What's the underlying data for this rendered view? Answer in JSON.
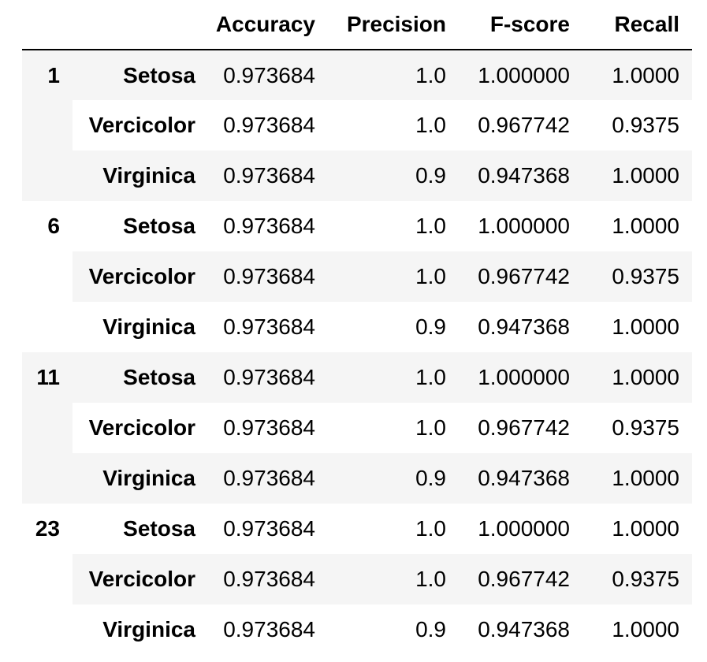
{
  "table": {
    "columns": [
      "Accuracy",
      "Precision",
      "F-score",
      "Recall"
    ],
    "groups": [
      {
        "label": "1",
        "rows": [
          {
            "species": "Setosa",
            "values": [
              "0.973684",
              "1.0",
              "1.000000",
              "1.0000"
            ]
          },
          {
            "species": "Vercicolor",
            "values": [
              "0.973684",
              "1.0",
              "0.967742",
              "0.9375"
            ]
          },
          {
            "species": "Virginica",
            "values": [
              "0.973684",
              "0.9",
              "0.947368",
              "1.0000"
            ]
          }
        ]
      },
      {
        "label": "6",
        "rows": [
          {
            "species": "Setosa",
            "values": [
              "0.973684",
              "1.0",
              "1.000000",
              "1.0000"
            ]
          },
          {
            "species": "Vercicolor",
            "values": [
              "0.973684",
              "1.0",
              "0.967742",
              "0.9375"
            ]
          },
          {
            "species": "Virginica",
            "values": [
              "0.973684",
              "0.9",
              "0.947368",
              "1.0000"
            ]
          }
        ]
      },
      {
        "label": "11",
        "rows": [
          {
            "species": "Setosa",
            "values": [
              "0.973684",
              "1.0",
              "1.000000",
              "1.0000"
            ]
          },
          {
            "species": "Vercicolor",
            "values": [
              "0.973684",
              "1.0",
              "0.967742",
              "0.9375"
            ]
          },
          {
            "species": "Virginica",
            "values": [
              "0.973684",
              "0.9",
              "0.947368",
              "1.0000"
            ]
          }
        ]
      },
      {
        "label": "23",
        "rows": [
          {
            "species": "Setosa",
            "values": [
              "0.973684",
              "1.0",
              "1.000000",
              "1.0000"
            ]
          },
          {
            "species": "Vercicolor",
            "values": [
              "0.973684",
              "1.0",
              "0.967742",
              "0.9375"
            ]
          },
          {
            "species": "Virginica",
            "values": [
              "0.973684",
              "0.9",
              "0.947368",
              "1.0000"
            ]
          }
        ]
      }
    ]
  }
}
